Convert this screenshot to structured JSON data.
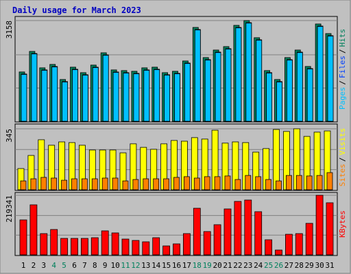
{
  "chart_data": [
    {
      "type": "bar",
      "title": "Daily usage for March 2023",
      "ylim": [
        0,
        3158
      ],
      "yticks": [
        3158
      ],
      "legend_separator": "/",
      "series": [
        {
          "name": "Hits",
          "color": "#00805c",
          "values": [
            1547,
            2191,
            1676,
            1783,
            1310,
            1697,
            1525,
            1762,
            2148,
            1611,
            1590,
            1568,
            1676,
            1697,
            1525,
            1568,
            1891,
            2943,
            1998,
            2234,
            2342,
            3008,
            3158,
            2621,
            1590,
            1310,
            1998,
            2234,
            1719,
            3051,
            2750
          ]
        },
        {
          "name": "Files",
          "color": "#0040ff",
          "values": [
            1482,
            2126,
            1611,
            1718,
            1245,
            1632,
            1460,
            1697,
            2083,
            1546,
            1525,
            1503,
            1611,
            1632,
            1460,
            1503,
            1826,
            2878,
            1933,
            2169,
            2277,
            2943,
            3093,
            2556,
            1525,
            1245,
            1933,
            2169,
            1654,
            2986,
            2685
          ]
        },
        {
          "name": "Pages",
          "color": "#00c0ff",
          "values": [
            1467,
            2111,
            1596,
            1703,
            1230,
            1617,
            1445,
            1682,
            2068,
            1531,
            1510,
            1488,
            1596,
            1617,
            1445,
            1488,
            1811,
            2863,
            1918,
            2154,
            2262,
            2928,
            3078,
            2541,
            1510,
            1230,
            1918,
            2154,
            1639,
            2971,
            2670
          ]
        }
      ]
    },
    {
      "type": "bar",
      "ylim": [
        0,
        345
      ],
      "yticks": [
        345
      ],
      "legend_separator": "/",
      "series": [
        {
          "name": "Visits",
          "color": "#ffff00",
          "values": [
            120,
            194,
            283,
            252,
            271,
            267,
            252,
            225,
            225,
            225,
            209,
            260,
            240,
            229,
            260,
            279,
            275,
            295,
            287,
            337,
            264,
            271,
            267,
            213,
            233,
            341,
            330,
            345,
            302,
            326,
            333
          ]
        },
        {
          "name": "Sites",
          "color": "#ff8000",
          "values": [
            50,
            62,
            70,
            66,
            54,
            62,
            62,
            62,
            66,
            66,
            50,
            58,
            62,
            62,
            62,
            70,
            74,
            66,
            74,
            74,
            78,
            58,
            81,
            74,
            58,
            50,
            81,
            81,
            78,
            81,
            97
          ]
        }
      ]
    },
    {
      "type": "bar",
      "ylim": [
        0,
        219341
      ],
      "yticks": [
        219341
      ],
      "categories": [
        "1",
        "2",
        "3",
        "4",
        "5",
        "6",
        "7",
        "8",
        "9",
        "10",
        "11",
        "12",
        "13",
        "14",
        "15",
        "16",
        "17",
        "18",
        "19",
        "20",
        "21",
        "22",
        "23",
        "24",
        "25",
        "26",
        "27",
        "28",
        "29",
        "30",
        "31"
      ],
      "category_colors": [
        "#000000",
        "#000000",
        "#000000",
        "#00805c",
        "#00805c",
        "#000000",
        "#000000",
        "#000000",
        "#000000",
        "#000000",
        "#00805c",
        "#00805c",
        "#000000",
        "#000000",
        "#000000",
        "#000000",
        "#000000",
        "#00805c",
        "#00805c",
        "#000000",
        "#000000",
        "#000000",
        "#000000",
        "#000000",
        "#00805c",
        "#00805c",
        "#000000",
        "#000000",
        "#000000",
        "#000000",
        "#000000"
      ],
      "series": [
        {
          "name": "KBytes",
          "color": "#ff0000",
          "values": [
            128580,
            184044,
            78156,
            93283,
            60507,
            60507,
            60507,
            63029,
            88240,
            80677,
            57986,
            52944,
            47902,
            63029,
            32775,
            40338,
            78156,
            171438,
            85719,
            110930,
            168917,
            196650,
            201693,
            158832,
            55465,
            17648,
            75635,
            78156,
            115973,
            219341,
            191608
          ]
        }
      ]
    }
  ]
}
